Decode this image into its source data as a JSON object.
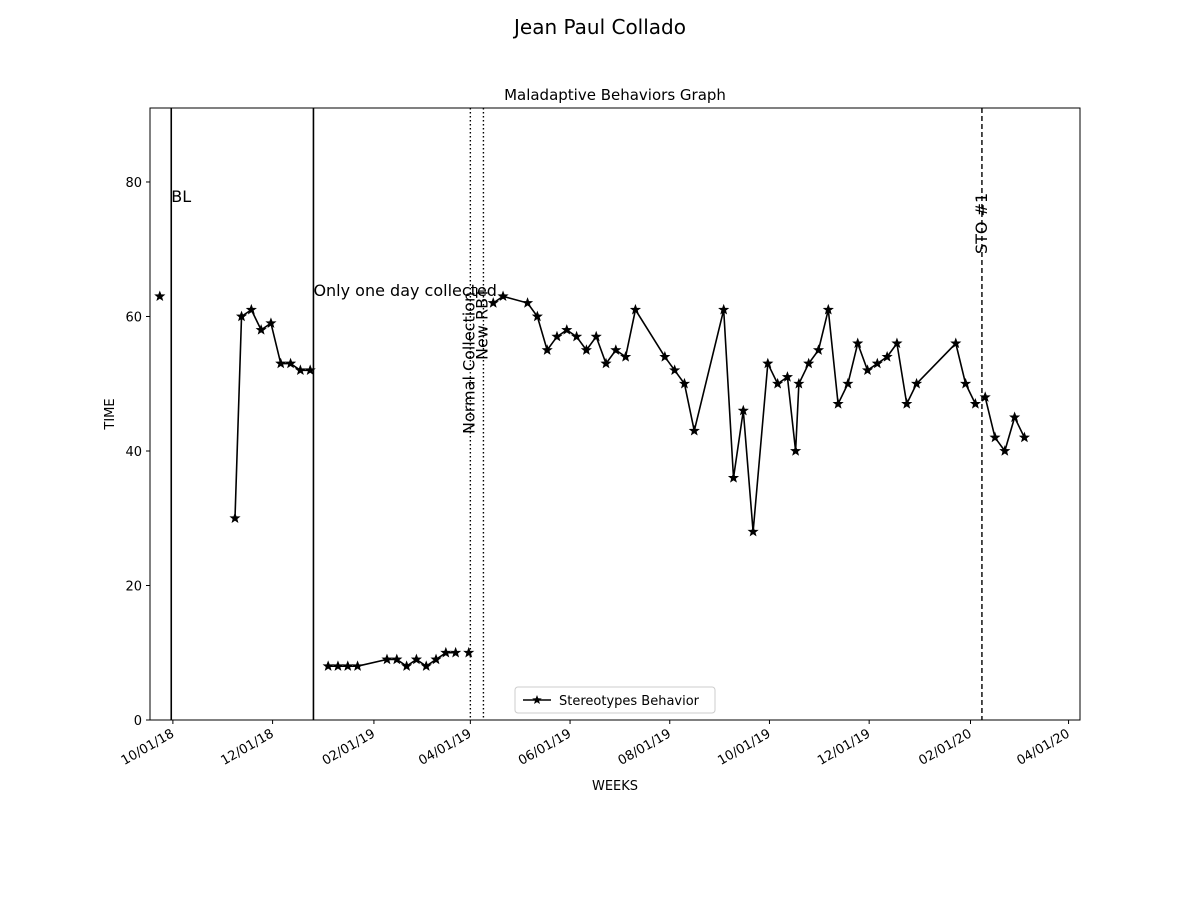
{
  "suptitle": "Jean Paul  Collado",
  "chart_data": {
    "type": "line",
    "title": "Maladaptive Behaviors Graph",
    "xlabel": "WEEKS",
    "ylabel": "TIME",
    "ylim": [
      0,
      91
    ],
    "xlim": [
      "2018-09-17",
      "2020-04-08"
    ],
    "yticks": [
      0,
      20,
      40,
      60,
      80
    ],
    "xticks": [
      {
        "date": "2018-10-01",
        "label": "10/01/18"
      },
      {
        "date": "2018-12-01",
        "label": "12/01/18"
      },
      {
        "date": "2019-02-01",
        "label": "02/01/19"
      },
      {
        "date": "2019-04-01",
        "label": "04/01/19"
      },
      {
        "date": "2019-06-01",
        "label": "06/01/19"
      },
      {
        "date": "2019-08-01",
        "label": "08/01/19"
      },
      {
        "date": "2019-10-01",
        "label": "10/01/19"
      },
      {
        "date": "2019-12-01",
        "label": "12/01/19"
      },
      {
        "date": "2020-02-01",
        "label": "02/01/20"
      },
      {
        "date": "2020-04-01",
        "label": "04/01/20"
      }
    ],
    "grid": false,
    "legend": {
      "placement": "lower-center",
      "entries": [
        "Stereotypes Behavior"
      ]
    },
    "series": [
      {
        "name": "Stereotypes Behavior",
        "color": "#000000",
        "marker": "star",
        "segments": [
          [
            [
              "2018-09-23",
              63
            ]
          ],
          [
            [
              "2018-11-08",
              30
            ],
            [
              "2018-11-12",
              60
            ],
            [
              "2018-11-18",
              61
            ],
            [
              "2018-11-24",
              58
            ],
            [
              "2018-11-30",
              59
            ],
            [
              "2018-12-06",
              53
            ],
            [
              "2018-12-12",
              53
            ],
            [
              "2018-12-18",
              52
            ],
            [
              "2018-12-24",
              52
            ]
          ],
          [
            [
              "2019-01-04",
              8
            ],
            [
              "2019-01-10",
              8
            ],
            [
              "2019-01-16",
              8
            ],
            [
              "2019-01-22",
              8
            ],
            [
              "2019-02-09",
              9
            ],
            [
              "2019-02-15",
              9
            ],
            [
              "2019-02-21",
              8
            ],
            [
              "2019-02-27",
              9
            ],
            [
              "2019-03-05",
              8
            ],
            [
              "2019-03-11",
              9
            ],
            [
              "2019-03-17",
              10
            ],
            [
              "2019-03-23",
              10
            ]
          ],
          [
            [
              "2019-03-31",
              10
            ]
          ],
          [
            [
              "2019-04-15",
              62
            ],
            [
              "2019-04-21",
              63
            ],
            [
              "2019-05-06",
              62
            ],
            [
              "2019-05-12",
              60
            ],
            [
              "2019-05-18",
              55
            ],
            [
              "2019-05-24",
              57
            ],
            [
              "2019-05-30",
              58
            ],
            [
              "2019-06-05",
              57
            ],
            [
              "2019-06-11",
              55
            ],
            [
              "2019-06-17",
              57
            ],
            [
              "2019-06-23",
              53
            ],
            [
              "2019-06-29",
              55
            ],
            [
              "2019-07-05",
              54
            ],
            [
              "2019-07-11",
              61
            ],
            [
              "2019-07-29",
              54
            ],
            [
              "2019-08-04",
              52
            ],
            [
              "2019-08-10",
              50
            ],
            [
              "2019-08-16",
              43
            ],
            [
              "2019-09-03",
              61
            ],
            [
              "2019-09-09",
              36
            ],
            [
              "2019-09-15",
              46
            ],
            [
              "2019-09-21",
              28
            ],
            [
              "2019-09-30",
              53
            ],
            [
              "2019-10-06",
              50
            ],
            [
              "2019-10-12",
              51
            ],
            [
              "2019-10-17",
              40
            ],
            [
              "2019-10-19",
              50
            ],
            [
              "2019-10-25",
              53
            ],
            [
              "2019-10-31",
              55
            ],
            [
              "2019-11-06",
              61
            ],
            [
              "2019-11-12",
              47
            ],
            [
              "2019-11-18",
              50
            ],
            [
              "2019-11-24",
              56
            ],
            [
              "2019-11-30",
              52
            ],
            [
              "2019-12-06",
              53
            ],
            [
              "2019-12-12",
              54
            ],
            [
              "2019-12-18",
              56
            ],
            [
              "2019-12-24",
              47
            ],
            [
              "2019-12-30",
              50
            ],
            [
              "2020-01-23",
              56
            ],
            [
              "2020-01-29",
              50
            ],
            [
              "2020-02-04",
              47
            ]
          ],
          [
            [
              "2020-02-10",
              48
            ],
            [
              "2020-02-16",
              42
            ],
            [
              "2020-02-22",
              40
            ],
            [
              "2020-02-28",
              45
            ],
            [
              "2020-03-05",
              42
            ]
          ]
        ]
      }
    ],
    "phase_lines": [
      {
        "date": "2018-09-30",
        "style": "solid",
        "label": "BL",
        "orientation": "horizontal"
      },
      {
        "date": "2018-12-26",
        "style": "solid",
        "label": "Only one day collected",
        "orientation": "horizontal"
      },
      {
        "date": "2019-04-01",
        "style": "dotted",
        "label": "Normal Collection",
        "orientation": "vertical"
      },
      {
        "date": "2019-04-09",
        "style": "dotted",
        "label": "New RBT",
        "orientation": "vertical"
      },
      {
        "date": "2020-02-08",
        "style": "dashed",
        "label": "STO #1",
        "orientation": "vertical"
      }
    ]
  }
}
